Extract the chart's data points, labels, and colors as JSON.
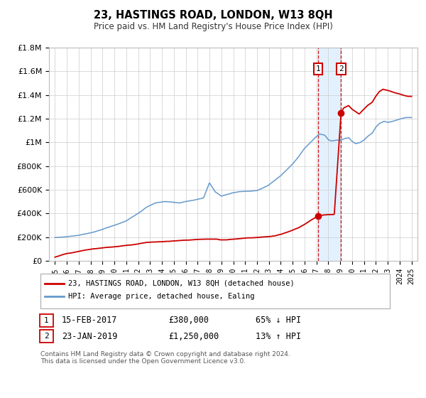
{
  "title": "23, HASTINGS ROAD, LONDON, W13 8QH",
  "subtitle": "Price paid vs. HM Land Registry's House Price Index (HPI)",
  "ylim": [
    0,
    1800000
  ],
  "xlim": [
    1994.5,
    2025.5
  ],
  "yticks": [
    0,
    200000,
    400000,
    600000,
    800000,
    1000000,
    1200000,
    1400000,
    1600000,
    1800000
  ],
  "ytick_labels": [
    "£0",
    "£200K",
    "£400K",
    "£600K",
    "£800K",
    "£1M",
    "£1.2M",
    "£1.4M",
    "£1.6M",
    "£1.8M"
  ],
  "xticks": [
    1995,
    1996,
    1997,
    1998,
    1999,
    2000,
    2001,
    2002,
    2003,
    2004,
    2005,
    2006,
    2007,
    2008,
    2009,
    2010,
    2011,
    2012,
    2013,
    2014,
    2015,
    2016,
    2017,
    2018,
    2019,
    2020,
    2021,
    2022,
    2023,
    2024,
    2025
  ],
  "transaction_color": "#cc0000",
  "hpi_color": "#6699cc",
  "background_shade": "#ddeeff",
  "sale1_x": 2017.12,
  "sale1_y": 380000,
  "sale1_label": "1",
  "sale1_date": "15-FEB-2017",
  "sale1_price": "£380,000",
  "sale1_hpi": "65% ↓ HPI",
  "sale2_x": 2019.07,
  "sale2_y": 1250000,
  "sale2_label": "2",
  "sale2_date": "23-JAN-2019",
  "sale2_price": "£1,250,000",
  "sale2_hpi": "13% ↑ HPI",
  "legend_line1": "23, HASTINGS ROAD, LONDON, W13 8QH (detached house)",
  "legend_line2": "HPI: Average price, detached house, Ealing",
  "footnote1": "Contains HM Land Registry data © Crown copyright and database right 2024.",
  "footnote2": "This data is licensed under the Open Government Licence v3.0."
}
